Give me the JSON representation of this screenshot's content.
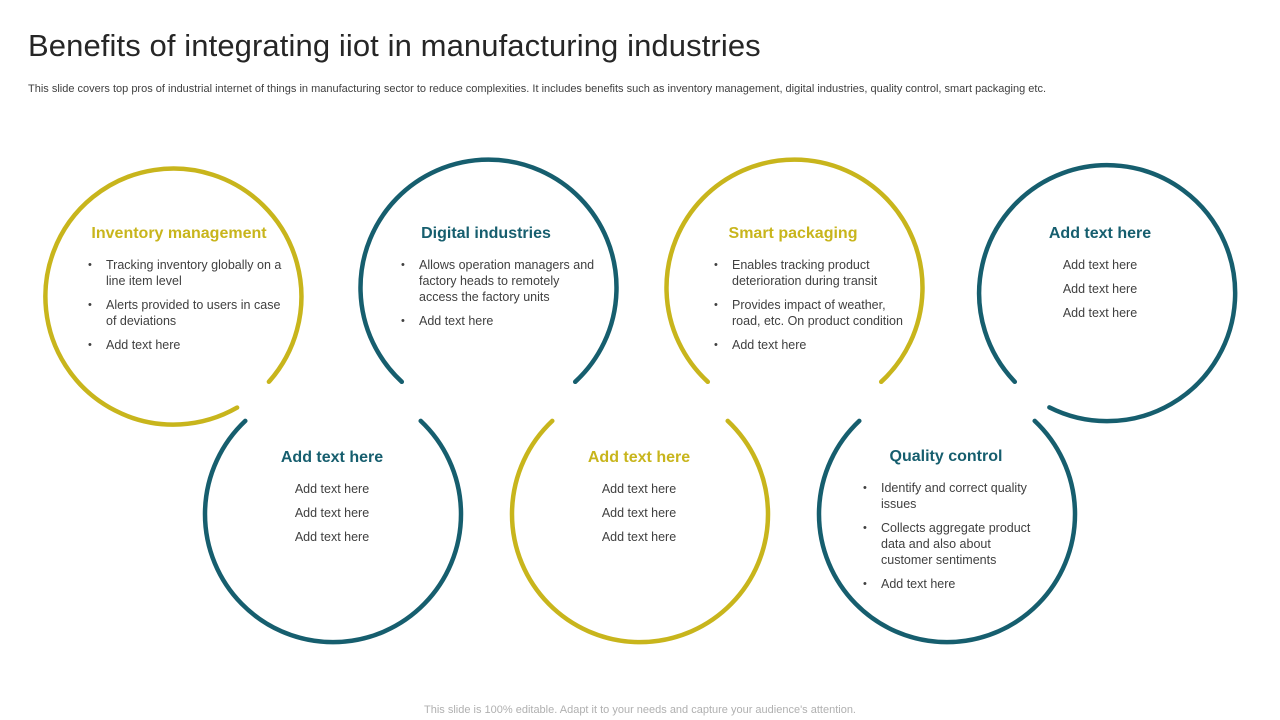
{
  "title": "Benefits of integrating iiot in manufacturing industries",
  "subtitle": "This slide covers top pros of industrial internet of things in manufacturing sector to reduce complexities. It includes benefits such as inventory management, digital industries, quality control, smart packaging etc.",
  "footer": "This slide is 100% editable. Adapt it to your needs and capture your audience's attention.",
  "colors": {
    "gold": "#c8b51c",
    "teal": "#165e6e"
  },
  "cards": [
    {
      "heading": "Inventory management",
      "color": "gold",
      "bullets": [
        "Tracking inventory globally on a line item level",
        "Alerts provided to users in case of deviations",
        "Add text here"
      ]
    },
    {
      "heading": "Digital industries",
      "color": "teal",
      "bullets": [
        "Allows operation managers and factory heads to remotely access the factory units",
        "Add text here"
      ]
    },
    {
      "heading": "Smart packaging",
      "color": "gold",
      "bullets": [
        "Enables tracking product deterioration during transit",
        "Provides impact of weather, road, etc. On product condition",
        "Add text here"
      ]
    },
    {
      "heading": "Add text here",
      "color": "teal",
      "lines": [
        "Add text here",
        "Add text here",
        "Add text here"
      ]
    },
    {
      "heading": "Add text here",
      "color": "teal",
      "lines": [
        "Add text here",
        "Add text here",
        "Add text here"
      ]
    },
    {
      "heading": "Add text here",
      "color": "gold",
      "lines": [
        "Add text here",
        "Add text here",
        "Add text here"
      ]
    },
    {
      "heading": "Quality control",
      "color": "teal",
      "bullets": [
        "Identify and correct quality issues",
        "Collects aggregate product data and also about customer sentiments",
        "Add text here"
      ]
    }
  ]
}
